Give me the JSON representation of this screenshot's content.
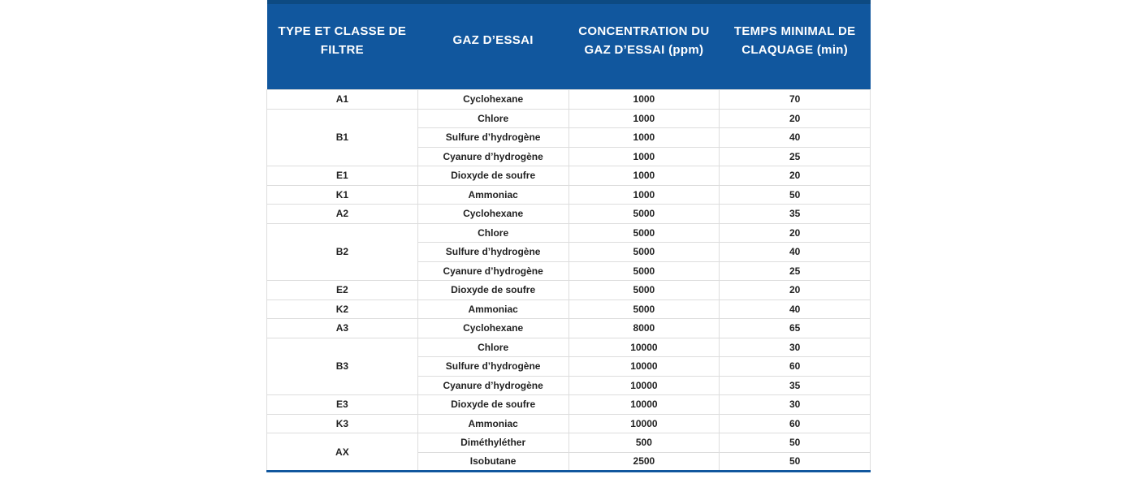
{
  "table": {
    "title_semantic": "gas-filter-test-table",
    "headers": [
      "TYPE ET CLASSE DE FILTRE",
      "GAZ D’ESSAI",
      "CONCENTRATION DU GAZ D’ESSAI (ppm)",
      "TEMPS MINIMAL DE CLAQUAGE (min)"
    ],
    "groups": [
      {
        "type": "A1",
        "rows": [
          [
            "Cyclohexane",
            "1000",
            "70"
          ]
        ]
      },
      {
        "type": "B1",
        "rows": [
          [
            "Chlore",
            "1000",
            "20"
          ],
          [
            "Sulfure d’hydrogène",
            "1000",
            "40"
          ],
          [
            "Cyanure d’hydrogène",
            "1000",
            "25"
          ]
        ]
      },
      {
        "type": "E1",
        "rows": [
          [
            "Dioxyde de soufre",
            "1000",
            "20"
          ]
        ]
      },
      {
        "type": "K1",
        "rows": [
          [
            "Ammoniac",
            "1000",
            "50"
          ]
        ]
      },
      {
        "type": "A2",
        "rows": [
          [
            "Cyclohexane",
            "5000",
            "35"
          ]
        ]
      },
      {
        "type": "B2",
        "rows": [
          [
            "Chlore",
            "5000",
            "20"
          ],
          [
            "Sulfure d’hydrogène",
            "5000",
            "40"
          ],
          [
            "Cyanure d’hydrogène",
            "5000",
            "25"
          ]
        ]
      },
      {
        "type": "E2",
        "rows": [
          [
            "Dioxyde de soufre",
            "5000",
            "20"
          ]
        ]
      },
      {
        "type": "K2",
        "rows": [
          [
            "Ammoniac",
            "5000",
            "40"
          ]
        ]
      },
      {
        "type": "A3",
        "rows": [
          [
            "Cyclohexane",
            "8000",
            "65"
          ]
        ]
      },
      {
        "type": "B3",
        "rows": [
          [
            "Chlore",
            "10000",
            "30"
          ],
          [
            "Sulfure d’hydrogène",
            "10000",
            "60"
          ],
          [
            "Cyanure d’hydrogène",
            "10000",
            "35"
          ]
        ]
      },
      {
        "type": "E3",
        "rows": [
          [
            "Dioxyde de soufre",
            "10000",
            "30"
          ]
        ]
      },
      {
        "type": "K3",
        "rows": [
          [
            "Ammoniac",
            "10000",
            "60"
          ]
        ]
      },
      {
        "type": "AX",
        "rows": [
          [
            "Diméthyléther",
            "500",
            "50"
          ],
          [
            "Isobutane",
            "2500",
            "50"
          ]
        ]
      }
    ],
    "colors": {
      "header_bg": "#11579e",
      "header_top_border": "#0d4a82",
      "header_text": "#ffffff",
      "row_border": "#dddddd",
      "body_text": "#222222",
      "bottom_border": "#11579e"
    }
  }
}
